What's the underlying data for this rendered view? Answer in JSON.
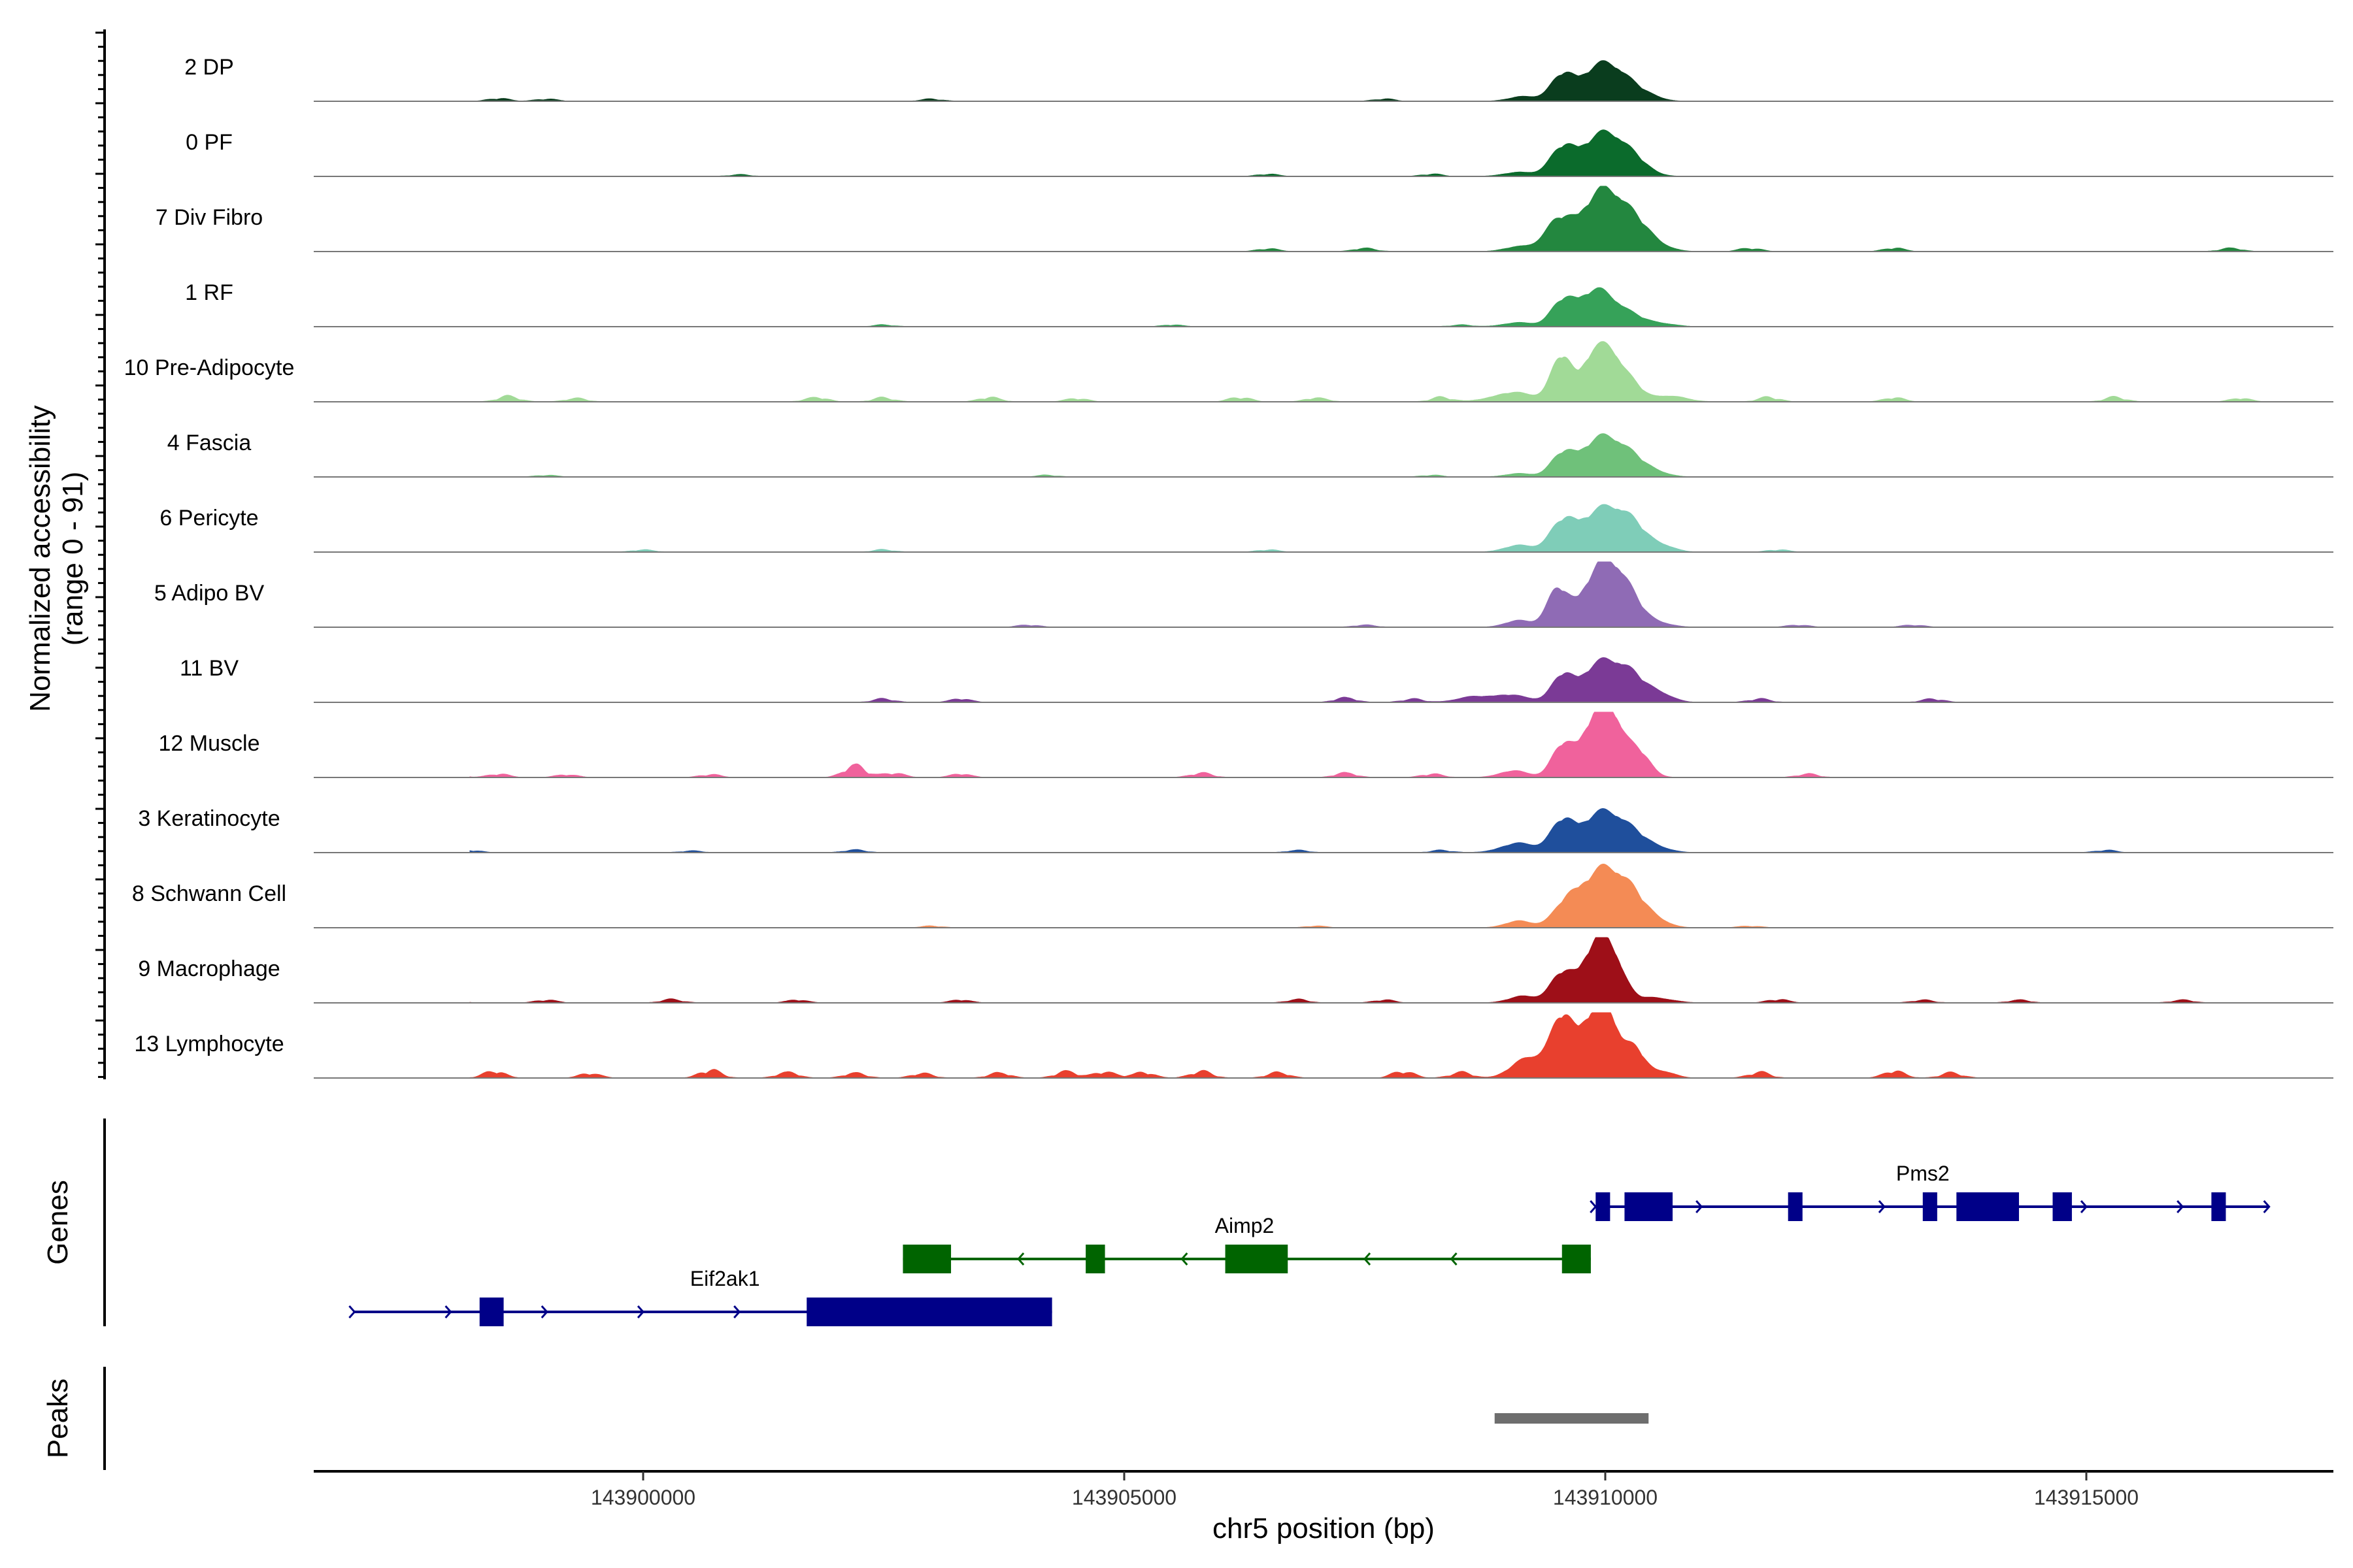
{
  "chart_data": {
    "type": "area",
    "title": "",
    "region": {
      "chrom": "chr5",
      "start": 143896200,
      "end": 143918000
    },
    "ylabel_line1": "Normalized accessibility",
    "ylabel_line2": "(range 0 - 91)",
    "ylim": [
      0,
      91
    ],
    "xlabel": "chr5 position (bp)",
    "x_ticks": [
      143900000,
      143905000,
      143910000,
      143915000
    ],
    "x_tick_labels": [
      "143900000",
      "143905000",
      "143910000",
      "143915000"
    ],
    "track_label_genes": "Genes",
    "track_label_peaks": "Peaks",
    "series": [
      {
        "name": "2 DP",
        "color": "#0a3d1e",
        "peaks": [
          [
            143909550,
            120,
            33
          ],
          [
            143909950,
            220,
            49
          ],
          [
            143910200,
            180,
            18
          ],
          [
            143909150,
            150,
            7
          ],
          [
            143910500,
            120,
            4
          ]
        ],
        "noise": [
          [
            143898500,
            5
          ],
          [
            143899000,
            4
          ],
          [
            143903000,
            4
          ],
          [
            143907700,
            4
          ]
        ]
      },
      {
        "name": "0 PF",
        "color": "#0b6b2c",
        "peaks": [
          [
            143909550,
            130,
            36
          ],
          [
            143909950,
            220,
            56
          ],
          [
            143910200,
            170,
            22
          ],
          [
            143909100,
            160,
            6
          ],
          [
            143910400,
            140,
            5
          ]
        ],
        "noise": [
          [
            143897900,
            3
          ],
          [
            143901000,
            3
          ],
          [
            143906500,
            4
          ],
          [
            143908200,
            4
          ]
        ]
      },
      {
        "name": "7 Div Fibro",
        "color": "#23873f",
        "peaks": [
          [
            143909500,
            140,
            38
          ],
          [
            143909950,
            230,
            80
          ],
          [
            143910250,
            200,
            34
          ],
          [
            143909100,
            150,
            7
          ],
          [
            143910500,
            160,
            6
          ]
        ],
        "noise": [
          [
            143906500,
            5
          ],
          [
            143907500,
            6
          ],
          [
            143911500,
            6
          ],
          [
            143913000,
            6
          ],
          [
            143916500,
            6
          ]
        ]
      },
      {
        "name": "1 RF",
        "color": "#36a259",
        "peaks": [
          [
            143909550,
            120,
            31
          ],
          [
            143909900,
            200,
            53
          ],
          [
            143910250,
            170,
            14
          ],
          [
            143909100,
            160,
            6
          ],
          [
            143910600,
            140,
            4
          ]
        ],
        "noise": [
          [
            143902500,
            3
          ],
          [
            143905500,
            3
          ],
          [
            143908500,
            3
          ]
        ]
      },
      {
        "name": "10 Pre-Adipocyte",
        "color": "#a1da97",
        "peaks": [
          [
            143909550,
            110,
            68
          ],
          [
            143909850,
            110,
            60
          ],
          [
            143910050,
            110,
            64
          ],
          [
            143910250,
            120,
            30
          ],
          [
            143909050,
            220,
            14
          ],
          [
            143910650,
            180,
            9
          ]
        ],
        "noise": [
          [
            143897300,
            8
          ],
          [
            143898600,
            10
          ],
          [
            143899300,
            6
          ],
          [
            143901800,
            8
          ],
          [
            143902500,
            7
          ],
          [
            143903600,
            8
          ],
          [
            143904500,
            6
          ],
          [
            143906200,
            8
          ],
          [
            143907000,
            7
          ],
          [
            143908300,
            8
          ],
          [
            143911700,
            8
          ],
          [
            143913000,
            7
          ],
          [
            143915300,
            8
          ],
          [
            143916600,
            6
          ]
        ]
      },
      {
        "name": "4 Fascia",
        "color": "#6fc17a",
        "peaks": [
          [
            143909550,
            120,
            28
          ],
          [
            143909950,
            220,
            55
          ],
          [
            143910250,
            170,
            22
          ],
          [
            143909100,
            140,
            5
          ],
          [
            143910550,
            130,
            5
          ]
        ],
        "noise": [
          [
            143899000,
            3
          ],
          [
            143904200,
            3
          ],
          [
            143908200,
            3
          ]
        ]
      },
      {
        "name": "6 Pericyte",
        "color": "#7fcdb8",
        "peaks": [
          [
            143909550,
            130,
            36
          ],
          [
            143909950,
            240,
            58
          ],
          [
            143910250,
            170,
            32
          ],
          [
            143909100,
            150,
            10
          ],
          [
            143910600,
            130,
            8
          ]
        ],
        "noise": [
          [
            143900000,
            4
          ],
          [
            143902500,
            4
          ],
          [
            143906500,
            4
          ],
          [
            143911800,
            4
          ]
        ]
      },
      {
        "name": "5 Adipo BV",
        "color": "#8f6bb5",
        "peaks": [
          [
            143909500,
            110,
            52
          ],
          [
            143909950,
            200,
            84
          ],
          [
            143910200,
            160,
            42
          ],
          [
            143909100,
            140,
            10
          ],
          [
            143910550,
            140,
            6
          ]
        ],
        "noise": [
          [
            143904000,
            4
          ],
          [
            143907500,
            4
          ],
          [
            143912000,
            4
          ],
          [
            143913200,
            4
          ]
        ]
      },
      {
        "name": "11 BV",
        "color": "#7b3a96",
        "peaks": [
          [
            143909550,
            110,
            34
          ],
          [
            143909950,
            210,
            57
          ],
          [
            143910250,
            150,
            32
          ],
          [
            143909000,
            200,
            11
          ],
          [
            143910550,
            140,
            14
          ],
          [
            143908600,
            160,
            7
          ]
        ],
        "noise": [
          [
            143897250,
            8
          ],
          [
            143902500,
            6
          ],
          [
            143903300,
            6
          ],
          [
            143907300,
            8
          ],
          [
            143908000,
            6
          ],
          [
            143911600,
            6
          ],
          [
            143913400,
            6
          ]
        ]
      },
      {
        "name": "12 Muscle",
        "color": "#f0629c",
        "peaks": [
          [
            143909550,
            110,
            44
          ],
          [
            143909900,
            160,
            86
          ],
          [
            143910100,
            120,
            56
          ],
          [
            143910350,
            120,
            36
          ],
          [
            143909050,
            150,
            10
          ]
        ],
        "noise": [
          [
            143898000,
            8
          ],
          [
            143898500,
            6
          ],
          [
            143899200,
            5
          ],
          [
            143900700,
            5
          ],
          [
            143902200,
            22
          ],
          [
            143902600,
            8
          ],
          [
            143903300,
            6
          ],
          [
            143905800,
            8
          ],
          [
            143907300,
            8
          ],
          [
            143908200,
            6
          ],
          [
            143912100,
            6
          ]
        ]
      },
      {
        "name": "3 Keratinocyte",
        "color": "#1f4f9c",
        "peaks": [
          [
            143909550,
            120,
            40
          ],
          [
            143909950,
            220,
            56
          ],
          [
            143910250,
            170,
            22
          ],
          [
            143909100,
            180,
            14
          ],
          [
            143910550,
            140,
            6
          ]
        ],
        "noise": [
          [
            143898200,
            4
          ],
          [
            143900500,
            3
          ],
          [
            143902200,
            5
          ],
          [
            143906800,
            4
          ],
          [
            143908300,
            4
          ],
          [
            143915200,
            4
          ]
        ]
      },
      {
        "name": "8 Schwann Cell",
        "color": "#f48b55",
        "peaks": [
          [
            143909600,
            140,
            28
          ],
          [
            143909950,
            220,
            78
          ],
          [
            143910250,
            170,
            40
          ],
          [
            143909100,
            140,
            10
          ],
          [
            143910550,
            130,
            8
          ]
        ],
        "noise": [
          [
            143903000,
            3
          ],
          [
            143907000,
            3
          ],
          [
            143911500,
            3
          ]
        ]
      },
      {
        "name": "9 Macrophage",
        "color": "#9e0f18",
        "peaks": [
          [
            143909550,
            120,
            42
          ],
          [
            143909900,
            150,
            83
          ],
          [
            143910100,
            120,
            46
          ],
          [
            143909150,
            150,
            10
          ],
          [
            143910500,
            180,
            8
          ]
        ],
        "noise": [
          [
            143898000,
            6
          ],
          [
            143899000,
            5
          ],
          [
            143900300,
            6
          ],
          [
            143901600,
            5
          ],
          [
            143903300,
            5
          ],
          [
            143906800,
            6
          ],
          [
            143907700,
            5
          ],
          [
            143911800,
            6
          ],
          [
            143913300,
            5
          ],
          [
            143914300,
            5
          ],
          [
            143916000,
            5
          ]
        ]
      },
      {
        "name": "13 Lymphocyte",
        "color": "#e8402e",
        "peaks": [
          [
            143909550,
            110,
            80
          ],
          [
            143909850,
            150,
            86
          ],
          [
            143910050,
            110,
            64
          ],
          [
            143910300,
            110,
            44
          ],
          [
            143909150,
            150,
            24
          ],
          [
            143909350,
            120,
            18
          ],
          [
            143910600,
            120,
            10
          ]
        ],
        "noise": [
          [
            143898450,
            12
          ],
          [
            143899450,
            8
          ],
          [
            143900700,
            14
          ],
          [
            143901500,
            10
          ],
          [
            143902200,
            9
          ],
          [
            143902900,
            8
          ],
          [
            143903700,
            9
          ],
          [
            143904400,
            12
          ],
          [
            143904800,
            11
          ],
          [
            143905200,
            10
          ],
          [
            143905800,
            12
          ],
          [
            143906600,
            10
          ],
          [
            143907900,
            12
          ],
          [
            143908500,
            10
          ],
          [
            143911600,
            10
          ],
          [
            143913000,
            12
          ],
          [
            143913600,
            9
          ]
        ]
      }
    ],
    "genes": [
      {
        "name": "Eif2ak1",
        "color": "#000088",
        "strand": "+",
        "row": 2,
        "start": 143897000,
        "end": 143904250,
        "exons": [
          [
            143898300,
            143898550
          ],
          [
            143901700,
            143904250
          ]
        ],
        "label_pos": 143900850,
        "arrows": [
          143897000,
          143898000,
          143899000,
          143900000,
          143901000
        ]
      },
      {
        "name": "Aimp2",
        "color": "#006400",
        "strand": "-",
        "row": 1,
        "start": 143902700,
        "end": 143909850,
        "exons": [
          [
            143902700,
            143903200
          ],
          [
            143904600,
            143904800
          ],
          [
            143906050,
            143906700
          ],
          [
            143909550,
            143909850
          ]
        ],
        "label_pos": 143906250,
        "arrows": [
          143903900,
          143905600,
          143907500,
          143908400
        ]
      },
      {
        "name": "Pms2",
        "color": "#000088",
        "strand": "+",
        "row": 0,
        "start": 143909900,
        "end": 143916900,
        "exons": [
          [
            143909900,
            143910050
          ],
          [
            143910200,
            143910700
          ],
          [
            143911900,
            143912050
          ],
          [
            143913300,
            143913450
          ],
          [
            143913650,
            143914300
          ],
          [
            143914650,
            143914850
          ],
          [
            143916300,
            143916450
          ]
        ],
        "label_pos": 143913300,
        "arrows": [
          143909900,
          143911000,
          143912900,
          143915000,
          143916000,
          143916900
        ]
      }
    ],
    "peaks_track": [
      {
        "start": 143908850,
        "end": 143910450,
        "color": "#6e6e6e"
      }
    ]
  }
}
